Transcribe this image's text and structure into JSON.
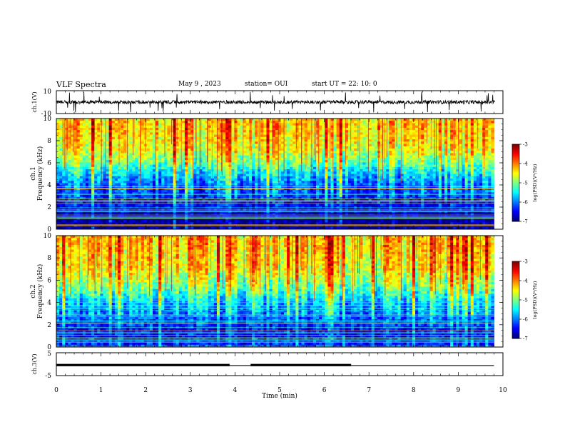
{
  "header": {
    "title": "VLF Spectra",
    "date": "May 9 , 2023",
    "station": "station= OUI",
    "start": "start UT = 22: 10: 0"
  },
  "colors": {
    "colormap": [
      "#000080",
      "#0000ff",
      "#0080ff",
      "#00ffff",
      "#00ff80",
      "#80ff00",
      "#ffff00",
      "#ff8000",
      "#ff0000",
      "#ffffff"
    ],
    "trace": "#000000",
    "axes": "#000000"
  },
  "chart_data": [
    {
      "type": "line",
      "panel": "waveform-ch1",
      "ylabel": "ch.1(V)",
      "ylim": [
        -10,
        10
      ],
      "y_ticks": [
        "10",
        "-10"
      ],
      "xlim": [
        0,
        10
      ],
      "description_values": {
        "baseline_v": 0,
        "typical_amplitude_v": 2.5,
        "max_spike_v": 9
      }
    },
    {
      "type": "heatmap",
      "panel": "spectrogram-ch1",
      "ylabel": "ch.1\nFrequency (kHz)",
      "ylabel_lines": [
        "ch.1",
        "Frequency (kHz)"
      ],
      "ylim": [
        0,
        10
      ],
      "y_ticks": [
        "0",
        "2",
        "4",
        "6",
        "8",
        "10"
      ],
      "xlim": [
        0,
        10
      ],
      "data_end_min": 9.8,
      "colorbar": {
        "label": "log(PSD)(V²/Hz)",
        "ticks": [
          "-3",
          "-4",
          "-5",
          "-6",
          "-7"
        ],
        "range": [
          -7,
          -3
        ]
      },
      "levels_by_freq_khz": [
        {
          "f": 0,
          "log_psd": -6.8
        },
        {
          "f": 1,
          "log_psd": -6.9
        },
        {
          "f": 2,
          "log_psd": -6.5
        },
        {
          "f": 3,
          "log_psd": -6.2
        },
        {
          "f": 4,
          "log_psd": -6.0
        },
        {
          "f": 5,
          "log_psd": -5.6
        },
        {
          "f": 6,
          "log_psd": -5.0
        },
        {
          "f": 7,
          "log_psd": -4.6
        },
        {
          "f": 8,
          "log_psd": -4.4
        },
        {
          "f": 9,
          "log_psd": -4.3
        },
        {
          "f": 10,
          "log_psd": -4.3
        }
      ]
    },
    {
      "type": "heatmap",
      "panel": "spectrogram-ch2",
      "ylabel": "ch.2\nFrequency (kHz)",
      "ylabel_lines": [
        "ch.2",
        "Frequency (kHz)"
      ],
      "ylim": [
        0,
        10
      ],
      "y_ticks": [
        "0",
        "2",
        "4",
        "6",
        "8",
        "10"
      ],
      "xlim": [
        0,
        10
      ],
      "data_end_min": 9.8,
      "colorbar": {
        "label": "log(PSD)(V²/Hz)",
        "ticks": [
          "-3",
          "-4",
          "-5",
          "-6",
          "-7"
        ],
        "range": [
          -7,
          -3
        ]
      },
      "levels_by_freq_khz": [
        {
          "f": 0,
          "log_psd": -6.3
        },
        {
          "f": 1,
          "log_psd": -6.5
        },
        {
          "f": 2,
          "log_psd": -6.3
        },
        {
          "f": 3,
          "log_psd": -6.0
        },
        {
          "f": 4,
          "log_psd": -5.7
        },
        {
          "f": 5,
          "log_psd": -5.2
        },
        {
          "f": 6,
          "log_psd": -4.8
        },
        {
          "f": 7,
          "log_psd": -4.5
        },
        {
          "f": 8,
          "log_psd": -4.4
        },
        {
          "f": 9,
          "log_psd": -4.3
        },
        {
          "f": 10,
          "log_psd": -4.3
        }
      ]
    },
    {
      "type": "line",
      "panel": "waveform-ch3",
      "ylabel": "ch.3(V)",
      "xlabel": "Time (min)",
      "ylim": [
        -5,
        5
      ],
      "y_ticks": [
        "5",
        "-5"
      ],
      "xlim": [
        0,
        10
      ],
      "x_ticks": [
        "0",
        "1",
        "2",
        "3",
        "4",
        "5",
        "6",
        "7",
        "8",
        "9",
        "10"
      ],
      "thin_level_v": -0.6,
      "thick_segments": [
        {
          "x0": 0,
          "x1": 3.88,
          "y": -0.4
        },
        {
          "x0": 4.35,
          "x1": 6.6,
          "y": -0.4
        }
      ],
      "data_end_min": 9.8
    }
  ]
}
